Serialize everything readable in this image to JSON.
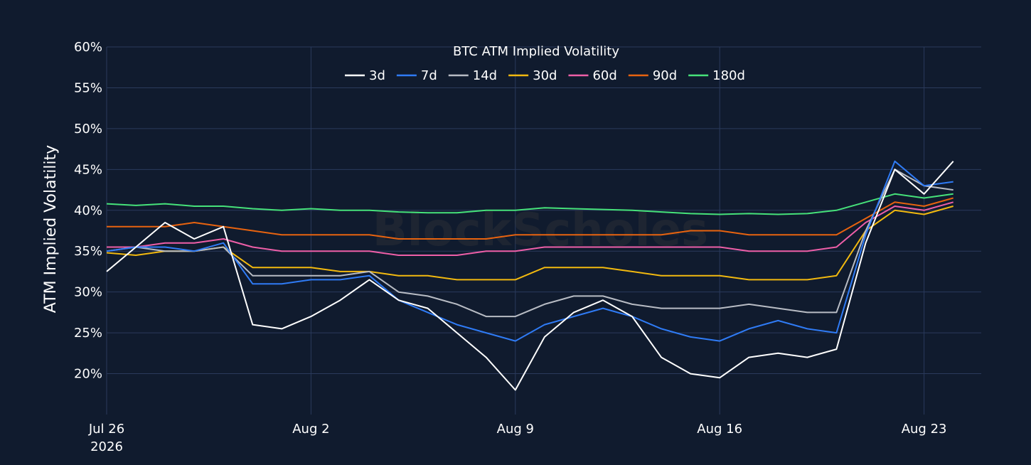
{
  "chart_data": {
    "type": "line",
    "title": "BTC ATM Implied Volatility",
    "ylabel": "ATM Implied Volatility",
    "xlabel": "",
    "watermark": "BlockScholes",
    "ylim": [
      15,
      60
    ],
    "y_ticks": [
      20,
      25,
      30,
      35,
      40,
      45,
      50,
      55,
      60
    ],
    "y_tick_format": "%",
    "x_range": [
      "2026-07-26",
      "2026-08-24T23:00"
    ],
    "x_ticks": [
      {
        "date": "2026-07-26",
        "label": "Jul 26",
        "sublabel": "2026"
      },
      {
        "date": "2026-08-02",
        "label": "Aug 2",
        "sublabel": ""
      },
      {
        "date": "2026-08-09",
        "label": "Aug 9",
        "sublabel": ""
      },
      {
        "date": "2026-08-16",
        "label": "Aug 16",
        "sublabel": ""
      },
      {
        "date": "2026-08-23",
        "label": "Aug 23",
        "sublabel": ""
      }
    ],
    "x": [
      "2026-07-26",
      "2026-07-27",
      "2026-07-28",
      "2026-07-29",
      "2026-07-30",
      "2026-07-31",
      "2026-08-01",
      "2026-08-02",
      "2026-08-03",
      "2026-08-04",
      "2026-08-05",
      "2026-08-06",
      "2026-08-07",
      "2026-08-08",
      "2026-08-09",
      "2026-08-10",
      "2026-08-11",
      "2026-08-12",
      "2026-08-13",
      "2026-08-14",
      "2026-08-15",
      "2026-08-16",
      "2026-08-17",
      "2026-08-18",
      "2026-08-19",
      "2026-08-20",
      "2026-08-21",
      "2026-08-22",
      "2026-08-23",
      "2026-08-24"
    ],
    "legend_position": "top-center",
    "grid": true,
    "series": [
      {
        "name": "3d",
        "color": "#ffffff",
        "values": [
          32.5,
          35.5,
          38.5,
          36.5,
          38.0,
          26.0,
          25.5,
          27.0,
          29.0,
          31.5,
          29.0,
          28.0,
          25.0,
          22.0,
          18.0,
          24.5,
          27.5,
          29.0,
          27.0,
          22.0,
          20.0,
          19.5,
          22.0,
          22.5,
          22.0,
          23.0,
          36.0,
          45.0,
          42.0,
          46.0
        ]
      },
      {
        "name": "7d",
        "color": "#2f7bf5",
        "values": [
          35.0,
          35.5,
          35.5,
          35.0,
          36.0,
          31.0,
          31.0,
          31.5,
          31.5,
          32.0,
          29.0,
          27.5,
          26.0,
          25.0,
          24.0,
          26.0,
          27.0,
          28.0,
          27.0,
          25.5,
          24.5,
          24.0,
          25.5,
          26.5,
          25.5,
          25.0,
          37.0,
          46.0,
          43.0,
          43.5
        ]
      },
      {
        "name": "14d",
        "color": "#b8bcc4",
        "values": [
          35.0,
          35.5,
          35.0,
          35.0,
          35.5,
          32.0,
          32.0,
          32.0,
          32.0,
          32.5,
          30.0,
          29.5,
          28.5,
          27.0,
          27.0,
          28.5,
          29.5,
          29.5,
          28.5,
          28.0,
          28.0,
          28.0,
          28.5,
          28.0,
          27.5,
          27.5,
          37.5,
          45.0,
          43.0,
          42.5
        ]
      },
      {
        "name": "30d",
        "color": "#f2b90f",
        "values": [
          34.8,
          34.5,
          35.0,
          35.0,
          35.5,
          33.0,
          33.0,
          33.0,
          32.5,
          32.5,
          32.0,
          32.0,
          31.5,
          31.5,
          31.5,
          33.0,
          33.0,
          33.0,
          32.5,
          32.0,
          32.0,
          32.0,
          31.5,
          31.5,
          31.5,
          32.0,
          37.5,
          40.0,
          39.5,
          40.5
        ]
      },
      {
        "name": "60d",
        "color": "#ee5fa8",
        "values": [
          35.5,
          35.5,
          36.0,
          36.0,
          36.5,
          35.5,
          35.0,
          35.0,
          35.0,
          35.0,
          34.5,
          34.5,
          34.5,
          35.0,
          35.0,
          35.5,
          35.5,
          35.5,
          35.5,
          35.5,
          35.5,
          35.5,
          35.0,
          35.0,
          35.0,
          35.5,
          38.5,
          40.5,
          40.0,
          41.0
        ]
      },
      {
        "name": "90d",
        "color": "#e8630f",
        "values": [
          38.0,
          38.0,
          38.0,
          38.5,
          38.0,
          37.5,
          37.0,
          37.0,
          37.0,
          37.0,
          36.5,
          36.5,
          36.5,
          36.5,
          37.0,
          37.0,
          37.0,
          37.0,
          37.0,
          37.0,
          37.5,
          37.5,
          37.0,
          37.0,
          37.0,
          37.0,
          39.0,
          41.0,
          40.5,
          41.5
        ]
      },
      {
        "name": "180d",
        "color": "#46e27a",
        "values": [
          40.8,
          40.6,
          40.8,
          40.5,
          40.5,
          40.2,
          40.0,
          40.2,
          40.0,
          40.0,
          39.8,
          39.7,
          39.7,
          40.0,
          40.0,
          40.3,
          40.2,
          40.1,
          40.0,
          39.8,
          39.6,
          39.5,
          39.6,
          39.5,
          39.6,
          40.0,
          41.0,
          42.0,
          41.5,
          42.0
        ]
      }
    ]
  }
}
